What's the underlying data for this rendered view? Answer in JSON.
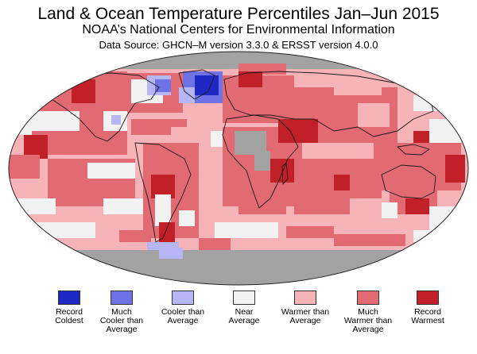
{
  "title": "Land & Ocean Temperature Percentiles Jan–Jun 2015",
  "subtitle": "NOAA’s National Centers for Environmental Information",
  "source": "Data Source: GHCN–M version 3.3.0 & ERSST version 4.0.0",
  "colors": {
    "record_coldest": "#2028c4",
    "much_cooler": "#6f72e4",
    "cooler": "#b6b6f4",
    "near": "#f2f2f2",
    "warmer": "#f6b4b8",
    "much_warmer": "#e26a72",
    "record_warmest": "#c22028",
    "missing": "#a2a2a2"
  },
  "legend": [
    {
      "key": "record_coldest",
      "label": "Record\nColdest"
    },
    {
      "key": "much_cooler",
      "label": "Much\nCooler than\nAverage"
    },
    {
      "key": "cooler",
      "label": "Cooler than\nAverage"
    },
    {
      "key": "near",
      "label": "Near\nAverage"
    },
    {
      "key": "warmer",
      "label": "Warmer than\nAverage"
    },
    {
      "key": "much_warmer",
      "label": "Much\nWarmer than\nAverage"
    },
    {
      "key": "record_warmest",
      "label": "Record\nWarmest"
    }
  ]
}
